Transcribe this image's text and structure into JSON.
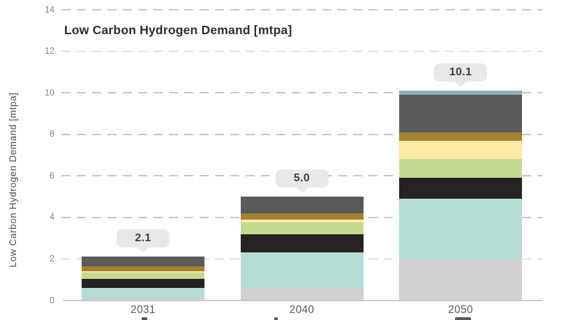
{
  "header": {
    "title": "Low Carbon Hydrogen Demand [mtpa]"
  },
  "chart_data": {
    "type": "bar",
    "stacked": true,
    "title": "Low Carbon Hydrogen Demand [mtpa]",
    "ylabel": "Low Carbon Hydrogen Demand [mtpa]",
    "xlabel": "",
    "categories": [
      "2031",
      "2040",
      "2050"
    ],
    "totals": [
      "2.1",
      "5.0",
      "10.1"
    ],
    "series": [
      {
        "name": "light-gray",
        "color": "#d1d1d3",
        "values": [
          0.1,
          0.6,
          2.0
        ]
      },
      {
        "name": "mint",
        "color": "#b5dcd4",
        "values": [
          0.5,
          1.7,
          2.9
        ]
      },
      {
        "name": "black",
        "color": "#262223",
        "values": [
          0.45,
          0.9,
          1.0
        ]
      },
      {
        "name": "green",
        "color": "#c4da8e",
        "values": [
          0.28,
          0.55,
          0.9
        ]
      },
      {
        "name": "pale-yellow",
        "color": "#fbe9a5",
        "values": [
          0.08,
          0.15,
          0.9
        ]
      },
      {
        "name": "gold",
        "color": "#a5812f",
        "values": [
          0.22,
          0.3,
          0.4
        ]
      },
      {
        "name": "dark-gray",
        "color": "#595a5c",
        "values": [
          0.47,
          0.8,
          1.8
        ]
      },
      {
        "name": "blue-gray",
        "color": "#8fb0c2",
        "values": [
          0.0,
          0.0,
          0.2
        ]
      }
    ],
    "ylim": [
      0,
      14
    ],
    "yticks": [
      0,
      2,
      4,
      6,
      8,
      10,
      12,
      14
    ],
    "grid": "dashed-horizontal",
    "legend": "none",
    "callout_style": {
      "background": "#e8e8e9",
      "text_color": "#3d3e40"
    },
    "axis_colors": {
      "baseline": "#c9c9c9",
      "gridline": "#c6c6c6",
      "tick_label": "#7d7e80",
      "x_label": "#57585b",
      "title": "#2e2d2c",
      "y_axis_title": "#4b4b4b"
    }
  }
}
